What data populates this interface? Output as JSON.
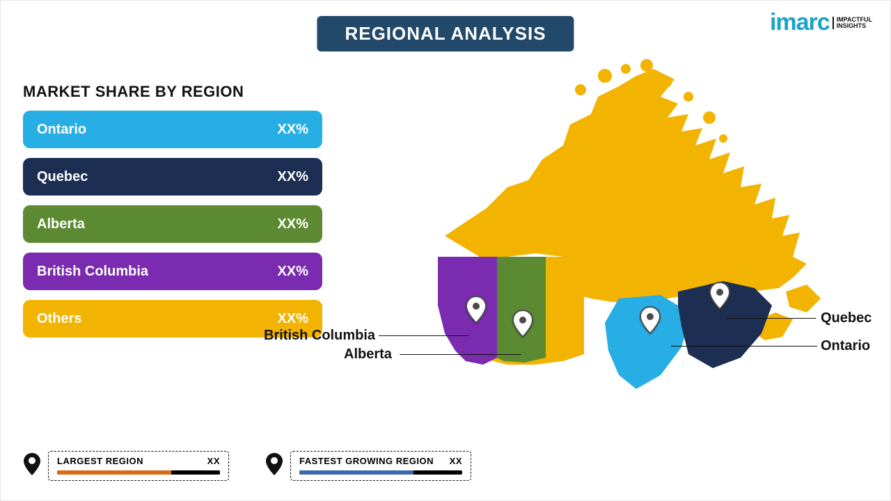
{
  "title": "REGIONAL ANALYSIS",
  "title_bg": "#22496a",
  "title_color": "#ffffff",
  "logo": {
    "text": "imarc",
    "tag1": "IMPACTFUL",
    "tag2": "INSIGHTS",
    "color": "#1aa3c8"
  },
  "panel_title": "MARKET SHARE BY REGION",
  "bars": [
    {
      "label": "Ontario",
      "value": "XX%",
      "color": "#27aee5"
    },
    {
      "label": "Quebec",
      "value": "XX%",
      "color": "#1c2e52"
    },
    {
      "label": "Alberta",
      "value": "XX%",
      "color": "#5c8a33"
    },
    {
      "label": "British Columbia",
      "value": "XX%",
      "color": "#7a2bb0"
    },
    {
      "label": "Others",
      "value": "XX%",
      "color": "#f3b301"
    }
  ],
  "map": {
    "bg_color": "#f3b301",
    "regions": {
      "others": "#f3b301",
      "bc": "#7a2bb0",
      "alberta": "#5c8a33",
      "ontario": "#27aee5",
      "quebec": "#1c2e52"
    },
    "labels": {
      "bc": "British Columbia",
      "alberta": "Alberta",
      "ontario": "Ontario",
      "quebec": "Quebec"
    },
    "pin_fill": "#ffffff",
    "pin_stroke": "#4b4b4b"
  },
  "legend": {
    "largest": {
      "label": "LARGEST REGION",
      "value": "XX",
      "bar_color": "#d96b17",
      "bar_fill_pct": 70
    },
    "fastest": {
      "label": "FASTEST GROWING REGION",
      "value": "XX",
      "bar_color": "#3b6aa9",
      "bar_fill_pct": 70
    }
  }
}
